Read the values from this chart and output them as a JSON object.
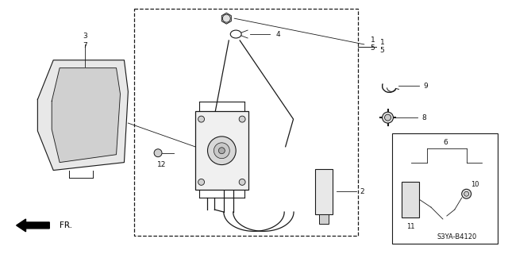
{
  "bg_color": "#ffffff",
  "line_color": "#1a1a1a",
  "part_code": "S3YA-B4120",
  "figsize": [
    6.4,
    3.2
  ],
  "dpi": 100
}
